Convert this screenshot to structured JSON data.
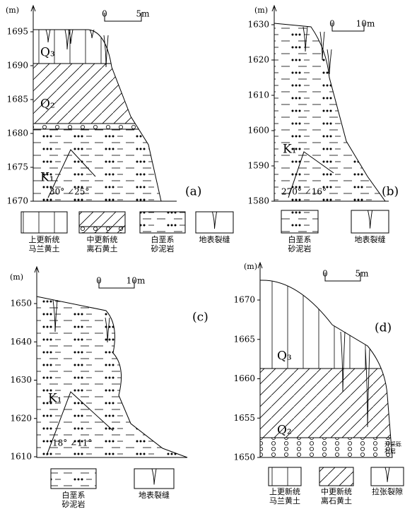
{
  "panels": [
    {
      "unit": "(m)",
      "yticks": [
        1695,
        1690,
        1685,
        1680,
        1675,
        1670
      ],
      "scale": [
        "0",
        "5m"
      ],
      "label": "(a)",
      "strata": [
        "Q₃",
        "Q₂",
        "K₁"
      ],
      "attitude": "30°  ∠25°"
    },
    {
      "unit": "(m)",
      "yticks": [
        1630,
        1620,
        1610,
        1600,
        1590,
        1580
      ],
      "scale": [
        "0",
        "10m"
      ],
      "label": "(b)",
      "strata": [
        "K₁"
      ],
      "attitude": "270°  ∠16°"
    },
    {
      "unit": "(m)",
      "yticks": [
        1650,
        1640,
        1630,
        1620,
        1610
      ],
      "scale": [
        "0",
        "10m"
      ],
      "label": "(c)",
      "strata": [
        "K₁"
      ],
      "attitude": "18°  ∠11°"
    },
    {
      "unit": "(m)",
      "yticks": [
        1670,
        1665,
        1660,
        1655,
        1650
      ],
      "scale": [
        "0",
        "5m"
      ],
      "label": "(d)",
      "strata": [
        "Q₃",
        "Q₂"
      ],
      "note": [
        "开采砾",
        "石层"
      ]
    }
  ],
  "legends": [
    [
      {
        "lines": [
          "上更新统",
          "马兰黄土"
        ]
      },
      {
        "lines": [
          "中更新统",
          "离石黄土"
        ]
      },
      {
        "lines": [
          "白垩系",
          "砂泥岩"
        ]
      },
      {
        "lines": [
          "地表裂缝"
        ]
      }
    ],
    [
      {
        "lines": [
          "白垩系",
          "砂泥岩"
        ]
      },
      {
        "lines": [
          "地表裂缝"
        ]
      }
    ],
    [
      {
        "lines": [
          "白垩系",
          "砂泥岩"
        ]
      },
      {
        "lines": [
          "地表裂缝"
        ]
      }
    ],
    [
      {
        "lines": [
          "上更新统",
          "马兰黄土"
        ]
      },
      {
        "lines": [
          "中更新统",
          "离石黄土"
        ]
      },
      {
        "lines": [
          "拉张裂隙"
        ]
      }
    ]
  ]
}
